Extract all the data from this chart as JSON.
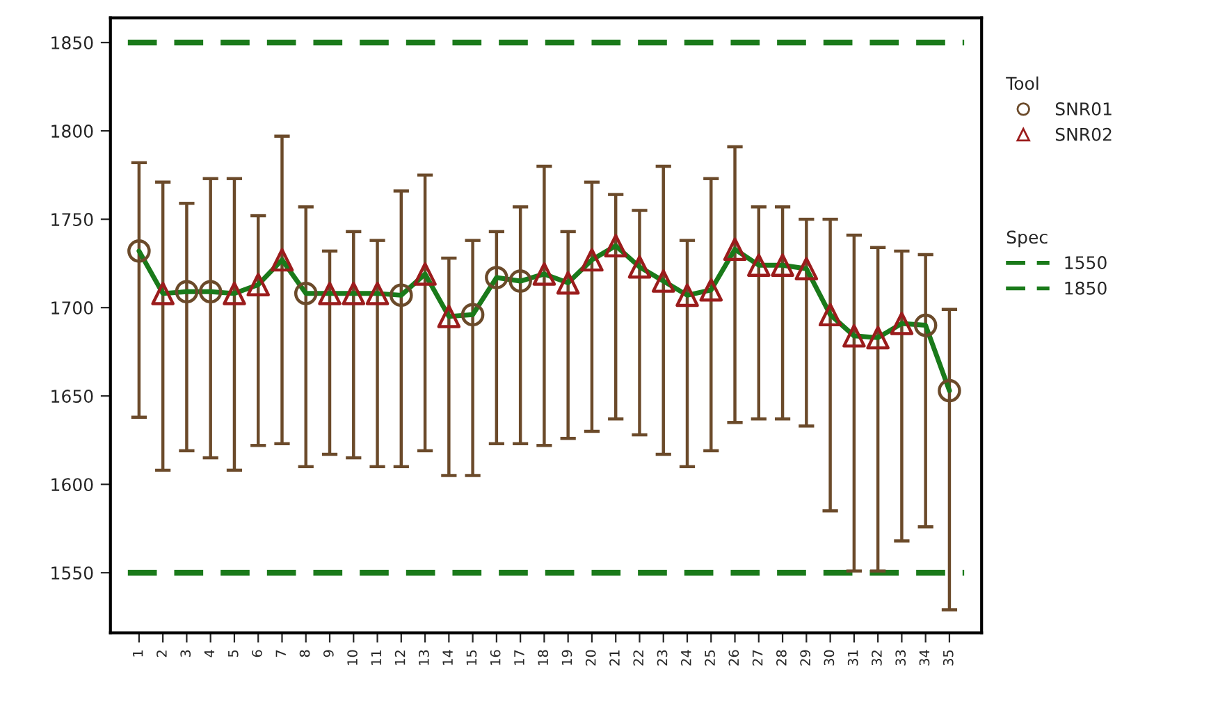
{
  "chart_data": {
    "type": "scatter",
    "categories": [
      "1",
      "2",
      "3",
      "4",
      "5",
      "6",
      "7",
      "8",
      "9",
      "10",
      "11",
      "12",
      "13",
      "14",
      "15",
      "16",
      "17",
      "18",
      "19",
      "20",
      "21",
      "22",
      "23",
      "24",
      "25",
      "26",
      "27",
      "28",
      "29",
      "30",
      "31",
      "32",
      "33",
      "34",
      "35"
    ],
    "series": [
      {
        "type": "line",
        "color": "#1a7a1a",
        "marker": "none",
        "values": [
          1732,
          1708,
          1709,
          1709,
          1708,
          1713,
          1727,
          1708,
          1708,
          1708,
          1708,
          1707,
          1719,
          1695,
          1696,
          1717,
          1715,
          1719,
          1714,
          1727,
          1735,
          1723,
          1715,
          1707,
          1710,
          1733,
          1724,
          1724,
          1722,
          1696,
          1684,
          1683,
          1691,
          1690,
          1653
        ]
      },
      {
        "name": "SNR01",
        "marker": "circle",
        "color": "#6b4a2a",
        "values": [
          1732,
          null,
          1709,
          1709,
          null,
          null,
          null,
          1708,
          null,
          null,
          null,
          1707,
          null,
          null,
          1696,
          1717,
          1715,
          null,
          null,
          null,
          null,
          null,
          null,
          null,
          null,
          null,
          null,
          null,
          null,
          null,
          null,
          null,
          null,
          1690,
          1653
        ],
        "errors": [
          [
            1638,
            1782
          ],
          null,
          [
            1619,
            1759
          ],
          [
            1615,
            1773
          ],
          null,
          null,
          null,
          [
            1610,
            1757
          ],
          null,
          null,
          null,
          [
            1610,
            1766
          ],
          null,
          null,
          [
            1605,
            1738
          ],
          [
            1623,
            1743
          ],
          [
            1623,
            1757
          ],
          null,
          null,
          null,
          null,
          null,
          null,
          null,
          null,
          null,
          null,
          null,
          null,
          null,
          null,
          null,
          null,
          [
            1576,
            1730
          ],
          [
            1529,
            1699
          ]
        ]
      },
      {
        "name": "SNR02",
        "marker": "triangle",
        "color": "#9b1c1c",
        "values": [
          null,
          1708,
          null,
          null,
          1708,
          1713,
          1727,
          null,
          1708,
          1708,
          1708,
          null,
          1719,
          1695,
          null,
          null,
          null,
          1719,
          1714,
          1727,
          1735,
          1723,
          1715,
          1707,
          1710,
          1733,
          1724,
          1724,
          1722,
          1696,
          1684,
          1683,
          1691,
          null,
          null
        ],
        "errors": [
          null,
          [
            1608,
            1771
          ],
          null,
          null,
          [
            1608,
            1773
          ],
          [
            1622,
            1752
          ],
          [
            1623,
            1797
          ],
          null,
          [
            1617,
            1732
          ],
          [
            1615,
            1743
          ],
          [
            1610,
            1738
          ],
          null,
          [
            1619,
            1775
          ],
          [
            1605,
            1728
          ],
          null,
          null,
          null,
          [
            1622,
            1780
          ],
          [
            1626,
            1743
          ],
          [
            1630,
            1771
          ],
          [
            1637,
            1764
          ],
          [
            1628,
            1755
          ],
          [
            1617,
            1780
          ],
          [
            1610,
            1738
          ],
          [
            1619,
            1773
          ],
          [
            1635,
            1791
          ],
          [
            1637,
            1757
          ],
          [
            1637,
            1757
          ],
          [
            1633,
            1750
          ],
          [
            1585,
            1750
          ],
          [
            1551,
            1741
          ],
          [
            1551,
            1734
          ],
          [
            1568,
            1732
          ],
          null,
          null
        ]
      }
    ],
    "ylim": [
      1516,
      1864
    ],
    "yticks": [
      1550,
      1600,
      1650,
      1700,
      1750,
      1800,
      1850
    ],
    "ref_lines": [
      {
        "axis": "y",
        "value": 1550,
        "label": "1550",
        "color": "#1a7a1a",
        "line_style": "dashed"
      },
      {
        "axis": "y",
        "value": 1850,
        "label": "1850",
        "color": "#1a7a1a",
        "line_style": "dashed"
      }
    ],
    "legend": "right",
    "legend_title": "Tool",
    "annotations": [
      "Spec"
    ],
    "grid": false
  }
}
